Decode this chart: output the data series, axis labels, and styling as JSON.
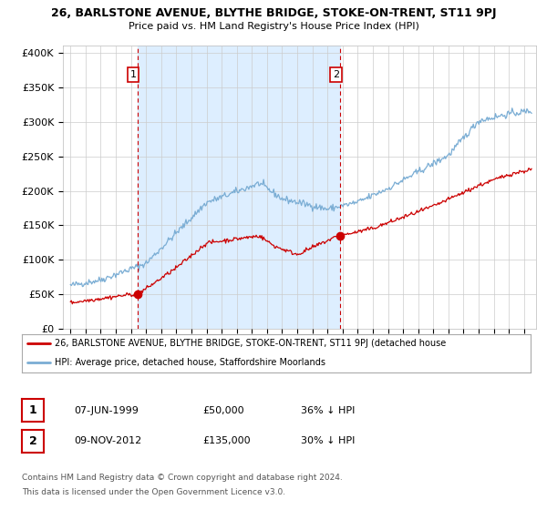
{
  "title": "26, BARLSTONE AVENUE, BLYTHE BRIDGE, STOKE-ON-TRENT, ST11 9PJ",
  "subtitle": "Price paid vs. HM Land Registry's House Price Index (HPI)",
  "ylim": [
    0,
    410000
  ],
  "yticks": [
    0,
    50000,
    100000,
    150000,
    200000,
    250000,
    300000,
    350000,
    400000
  ],
  "ytick_labels": [
    "£0",
    "£50K",
    "£100K",
    "£150K",
    "£200K",
    "£250K",
    "£300K",
    "£350K",
    "£400K"
  ],
  "sale1": {
    "date_num": 1999.44,
    "price": 50000,
    "label": "1",
    "date_str": "07-JUN-1999",
    "pct": "36%"
  },
  "sale2": {
    "date_num": 2012.86,
    "price": 135000,
    "label": "2",
    "date_str": "09-NOV-2012",
    "pct": "30%"
  },
  "property_line_color": "#cc0000",
  "hpi_line_color": "#7aadd4",
  "vline_color": "#cc0000",
  "shade_color": "#ddeeff",
  "legend1": "26, BARLSTONE AVENUE, BLYTHE BRIDGE, STOKE-ON-TRENT, ST11 9PJ (detached house",
  "legend2": "HPI: Average price, detached house, Staffordshire Moorlands",
  "footer1": "Contains HM Land Registry data © Crown copyright and database right 2024.",
  "footer2": "This data is licensed under the Open Government Licence v3.0.",
  "background_color": "#ffffff",
  "grid_color": "#cccccc"
}
